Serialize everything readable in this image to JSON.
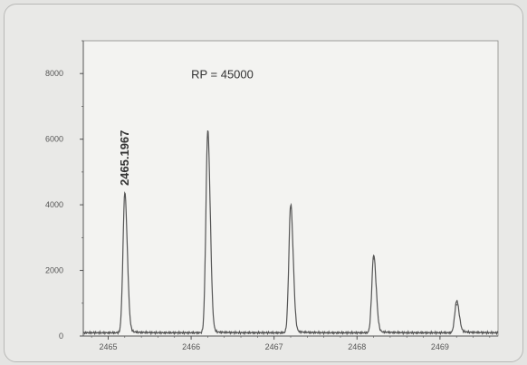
{
  "chart_data": {
    "type": "line",
    "title": "",
    "xlabel": "",
    "ylabel": "",
    "annotation": "RP = 45000",
    "peak_label": "2465.1967",
    "xlim": [
      2464.7,
      2469.7
    ],
    "ylim": [
      0,
      9000
    ],
    "x_ticks": [
      2465,
      2466,
      2467,
      2468,
      2469
    ],
    "x_tick_labels": [
      "2465",
      "2466",
      "2467",
      "2468",
      "2469"
    ],
    "y_ticks": [
      0,
      2000,
      4000,
      6000,
      8000
    ],
    "y_tick_labels": [
      "0",
      "2000",
      "4000",
      "6000",
      "8000"
    ],
    "grid": false,
    "peaks": [
      {
        "x": 2465.2,
        "y": 4250
      },
      {
        "x": 2466.2,
        "y": 6150
      },
      {
        "x": 2467.2,
        "y": 3900
      },
      {
        "x": 2468.2,
        "y": 2350
      },
      {
        "x": 2469.2,
        "y": 950
      }
    ],
    "baseline": 100
  },
  "colors": {
    "line": "#555555",
    "axis": "#555555",
    "plot_background": "#f3f3f1"
  }
}
